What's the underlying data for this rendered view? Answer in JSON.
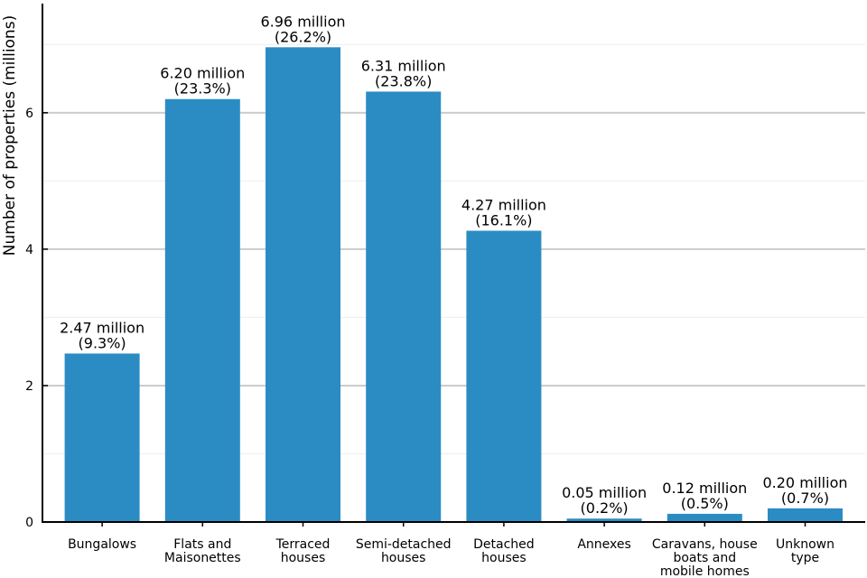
{
  "chart_data": {
    "type": "bar",
    "categories": [
      [
        "Bungalows"
      ],
      [
        "Flats and",
        "Maisonettes"
      ],
      [
        "Terraced",
        "houses"
      ],
      [
        "Semi-detached",
        "houses"
      ],
      [
        "Detached",
        "houses"
      ],
      [
        "Annexes"
      ],
      [
        "Caravans, house",
        "boats and",
        "mobile homes"
      ],
      [
        "Unknown",
        "type"
      ]
    ],
    "values": [
      2.47,
      6.2,
      6.96,
      6.31,
      4.27,
      0.05,
      0.12,
      0.2
    ],
    "value_labels": [
      [
        "2.47 million",
        "(9.3%)"
      ],
      [
        "6.20 million",
        "(23.3%)"
      ],
      [
        "6.96 million",
        "(26.2%)"
      ],
      [
        "6.31 million",
        "(23.8%)"
      ],
      [
        "4.27 million",
        "(16.1%)"
      ],
      [
        "0.05 million",
        "(0.2%)"
      ],
      [
        "0.12 million",
        "(0.5%)"
      ],
      [
        "0.20 million",
        "(0.7%)"
      ]
    ],
    "title": "",
    "xlabel": "",
    "ylabel": "Number of properties (millions)",
    "ylim": [
      0,
      7.6
    ],
    "yticks": [
      0,
      2,
      4,
      6
    ],
    "minor_yticks": [
      1,
      3,
      5,
      7
    ],
    "grid": true,
    "colors": {
      "bar": "#2b8cc4",
      "grid_major": "#cccccc",
      "grid_minor": "#eeeeee",
      "axis": "#000000"
    }
  }
}
